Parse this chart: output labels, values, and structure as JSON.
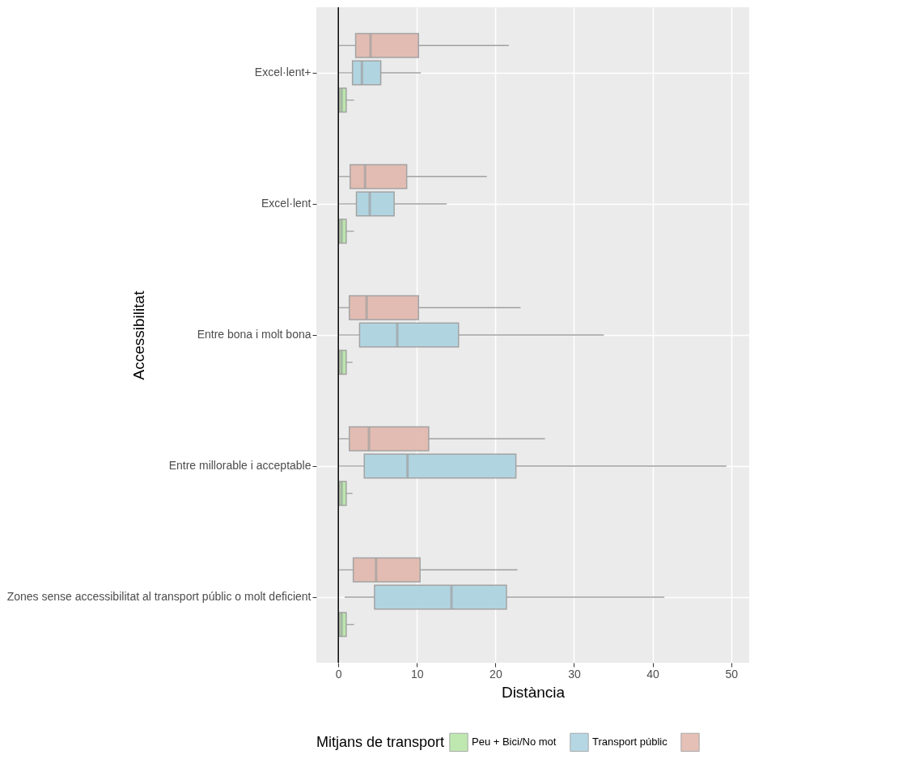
{
  "chart_data": {
    "type": "box",
    "orientation": "horizontal",
    "xlabel": "Distància",
    "ylabel": "Accessibilitat",
    "legend_title": "Mitjans de transport",
    "legend": "bottom",
    "grid": true,
    "categories": [
      "Excel·lent+",
      "Excel·lent",
      "Entre bona i molt bona",
      "Entre millorable i acceptable",
      "Zones sense accessibilitat al transport públic o molt deficient"
    ],
    "xlim": [
      -2.8,
      52.3
    ],
    "xticks": [
      0,
      10,
      20,
      30,
      40,
      50
    ],
    "ref_lines": [
      {
        "axis": "x",
        "value": 0,
        "color": "#000000"
      }
    ],
    "series": [
      {
        "name": "Peu + Bici/No mot",
        "color": "#b8e6a8",
        "boxes": [
          {
            "low": 0,
            "q1": 0.1,
            "median": 0.4,
            "q3": 1.0,
            "high": 2.0
          },
          {
            "low": 0,
            "q1": 0.1,
            "median": 0.4,
            "q3": 1.0,
            "high": 2.0
          },
          {
            "low": 0,
            "q1": 0.1,
            "median": 0.4,
            "q3": 1.0,
            "high": 1.8
          },
          {
            "low": 0,
            "q1": 0.1,
            "median": 0.4,
            "q3": 1.0,
            "high": 1.8
          },
          {
            "low": 0,
            "q1": 0.1,
            "median": 0.4,
            "q3": 1.0,
            "high": 2.0
          }
        ]
      },
      {
        "name": "Transport públic",
        "color": "#add3e0",
        "boxes": [
          {
            "low": 0.1,
            "q1": 1.8,
            "median": 3.0,
            "q3": 5.4,
            "high": 10.5
          },
          {
            "low": 0.1,
            "q1": 2.3,
            "median": 4.0,
            "q3": 7.1,
            "high": 13.8
          },
          {
            "low": 0.1,
            "q1": 2.7,
            "median": 7.5,
            "q3": 15.3,
            "high": 33.8
          },
          {
            "low": 0.1,
            "q1": 3.3,
            "median": 8.8,
            "q3": 22.6,
            "high": 49.4
          },
          {
            "low": 0.8,
            "q1": 4.6,
            "median": 14.4,
            "q3": 21.4,
            "high": 41.5
          }
        ]
      },
      {
        "color": "#e2bab0",
        "boxes": [
          {
            "low": 0.1,
            "q1": 2.2,
            "median": 4.1,
            "q3": 10.2,
            "high": 21.7
          },
          {
            "low": 0.1,
            "q1": 1.5,
            "median": 3.4,
            "q3": 8.7,
            "high": 18.9
          },
          {
            "low": 0.1,
            "q1": 1.4,
            "median": 3.6,
            "q3": 10.2,
            "high": 23.2
          },
          {
            "low": 0.1,
            "q1": 1.4,
            "median": 3.9,
            "q3": 11.5,
            "high": 26.3
          },
          {
            "low": 0.1,
            "q1": 1.9,
            "median": 4.8,
            "q3": 10.4,
            "high": 22.8
          }
        ]
      }
    ]
  }
}
